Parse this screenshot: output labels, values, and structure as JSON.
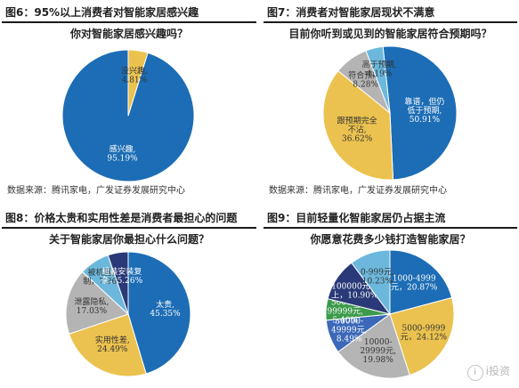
{
  "source_note": "数据来源：腾讯家电，广发证券发展研究中心",
  "watermark": "i投资",
  "chart_data": [
    {
      "type": "pie",
      "figure_label": "图6：95%以上消费者对智能家居感兴趣",
      "title": "你对智能家居感兴趣吗？",
      "slices": [
        {
          "label": [
            "感兴趣,",
            "95.19%"
          ],
          "value": 95.19,
          "color": "#1c6db5"
        },
        {
          "label": [
            "没兴趣,",
            "4.81%"
          ],
          "value": 4.81,
          "color": "#ebc24f"
        }
      ]
    },
    {
      "type": "pie",
      "figure_label": "图7：消费者对智能家居现状不满意",
      "title": "目前你听到或见到的智能家居符合预期吗？",
      "slices": [
        {
          "label": [
            "靠谱，但仍",
            "低于预期,",
            "50.91%"
          ],
          "value": 50.91,
          "color": "#1c6db5"
        },
        {
          "label": [
            "跟预期完全",
            "不沾,",
            "36.62%"
          ],
          "value": 36.62,
          "color": "#ebc24f"
        },
        {
          "label": [
            "符合预期,",
            "8.28%"
          ],
          "value": 8.28,
          "color": "#b4b4b4"
        },
        {
          "label": [
            "高于预期,",
            "4.19%"
          ],
          "value": 4.19,
          "color": "#6cb8dc"
        }
      ]
    },
    {
      "type": "pie",
      "figure_label": "图8：价格太贵和实用性差是消费者最担心的问题",
      "title": "关于智能家居你最担心什么问题？",
      "slices": [
        {
          "label": [
            "太贵,",
            "45.35%"
          ],
          "value": 45.35,
          "color": "#1c6db5"
        },
        {
          "label": [
            "实用性差,",
            "24.49%"
          ],
          "value": 24.49,
          "color": "#ebc24f"
        },
        {
          "label": [
            "泄露隐私,",
            "17.03%"
          ],
          "value": 17.03,
          "color": "#b4b4b4"
        },
        {
          "label": [
            "被机器控",
            "制，7.86%"
          ],
          "value": 7.86,
          "color": "#6cb8dc"
        },
        {
          "label": [
            "组装安装复",
            "杂，5.26%"
          ],
          "value": 5.26,
          "color": "#2a3a78"
        }
      ]
    },
    {
      "type": "pie",
      "figure_label": "图9：目前轻量化智能家居仍占据主流",
      "title": "你愿意花费多少钱打造智能家居？",
      "slices": [
        {
          "label": [
            "1000-4999",
            "元，20.87%"
          ],
          "value": 20.87,
          "color": "#1c6db5"
        },
        {
          "label": [
            "5000-9999",
            "元，24.12%"
          ],
          "value": 24.12,
          "color": "#ebc24f"
        },
        {
          "label": [
            "10000-",
            "29999元,",
            "19.98%"
          ],
          "value": 19.98,
          "color": "#b4b4b4"
        },
        {
          "label": [
            "30000-",
            "49999元,",
            "8.49%"
          ],
          "value": 8.49,
          "color": "#3b68b8"
        },
        {
          "label": [
            "50000-",
            "99999元,",
            "5.40%"
          ],
          "value": 5.4,
          "color": "#3c9a4b"
        },
        {
          "label": [
            "100000元以",
            "上，10.90%"
          ],
          "value": 10.9,
          "color": "#2a3a78"
        },
        {
          "label": [
            "0-999元,",
            "10.23%"
          ],
          "value": 10.23,
          "color": "#6cb8dc"
        }
      ]
    }
  ]
}
